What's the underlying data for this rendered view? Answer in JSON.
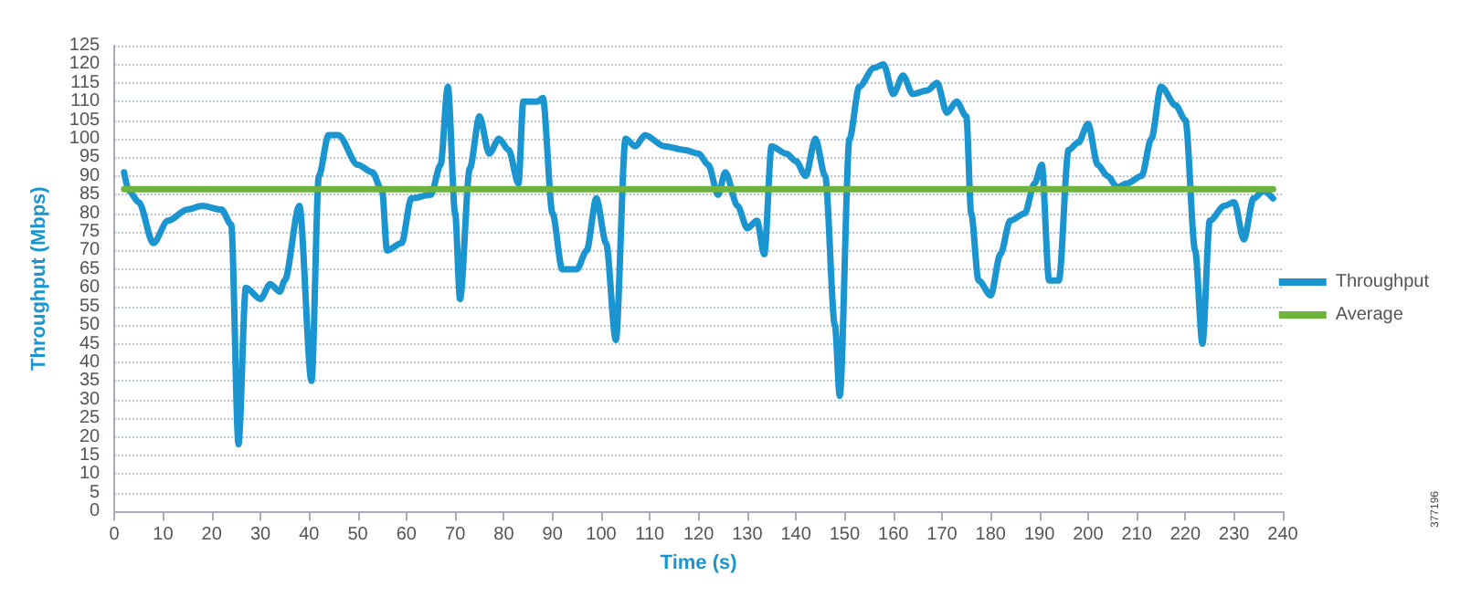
{
  "chart_data": {
    "type": "line",
    "xlabel": "Time (s)",
    "ylabel": "Throughput (Mbps)",
    "xlim": [
      0,
      240
    ],
    "xticks": [
      0,
      10,
      20,
      30,
      40,
      50,
      60,
      70,
      80,
      90,
      100,
      110,
      120,
      130,
      140,
      150,
      160,
      170,
      180,
      190,
      200,
      210,
      220,
      230,
      240
    ],
    "ylim": [
      0,
      125
    ],
    "yticks": [
      0,
      5,
      10,
      15,
      20,
      25,
      30,
      35,
      40,
      45,
      50,
      55,
      60,
      65,
      70,
      75,
      80,
      85,
      90,
      95,
      100,
      105,
      110,
      115,
      120,
      125
    ],
    "grid": "y",
    "legend": "right",
    "marker": "none",
    "line_style": "solid",
    "annotations": [
      "377196"
    ],
    "series": [
      {
        "name": "Throughput",
        "color": "#1a95d0",
        "x": [
          2,
          3,
          5,
          8,
          11,
          15,
          18,
          22,
          24,
          25.5,
          27,
          30,
          32,
          34,
          35,
          38,
          40.5,
          42,
          44,
          46,
          50,
          53,
          55,
          56,
          59,
          61,
          65,
          67,
          68.5,
          70,
          71,
          73,
          75,
          77,
          79,
          81,
          83,
          84,
          87,
          88,
          90,
          92,
          95,
          97,
          99,
          101,
          103,
          105,
          107,
          109,
          113,
          117,
          120,
          122,
          124,
          125.5,
          128,
          130,
          132,
          133.5,
          135,
          138,
          140,
          142,
          144,
          146,
          148,
          149,
          151,
          153,
          156,
          158,
          160,
          162,
          164,
          167,
          169,
          171,
          173,
          175,
          176,
          177.5,
          180,
          182,
          184,
          187,
          189,
          190.5,
          192,
          194,
          196,
          198,
          200,
          202,
          204,
          206,
          208,
          211,
          213,
          215,
          218,
          220,
          222,
          223.5,
          225,
          228,
          230,
          232,
          234,
          236,
          238
        ],
        "values": [
          91,
          86,
          83,
          72,
          78,
          81,
          82,
          81,
          77,
          18,
          60,
          57,
          61,
          59,
          62,
          82,
          35,
          90,
          101,
          101,
          93,
          91,
          86,
          70,
          72,
          84,
          85,
          93,
          114,
          80,
          57,
          92,
          106,
          96,
          100,
          97,
          88,
          110,
          110,
          111,
          80,
          65,
          65,
          70,
          84,
          72,
          46,
          100,
          98,
          101,
          98,
          97,
          96,
          93,
          85,
          91,
          82,
          76,
          78,
          69,
          98,
          96,
          94,
          90,
          100,
          90,
          50,
          31,
          100,
          114,
          119,
          120,
          112,
          117,
          112,
          113,
          115,
          107,
          110,
          106,
          80,
          62,
          58,
          69,
          78,
          80,
          88,
          93,
          62,
          62,
          97,
          99,
          104,
          93,
          90,
          87,
          88,
          90,
          100,
          114,
          109,
          105,
          70,
          45,
          78,
          82,
          83,
          73,
          84,
          86,
          84
        ]
      },
      {
        "name": "Average",
        "color": "#6fb33f",
        "x": [
          2,
          238
        ],
        "values": [
          86.5,
          86.5
        ]
      }
    ]
  }
}
